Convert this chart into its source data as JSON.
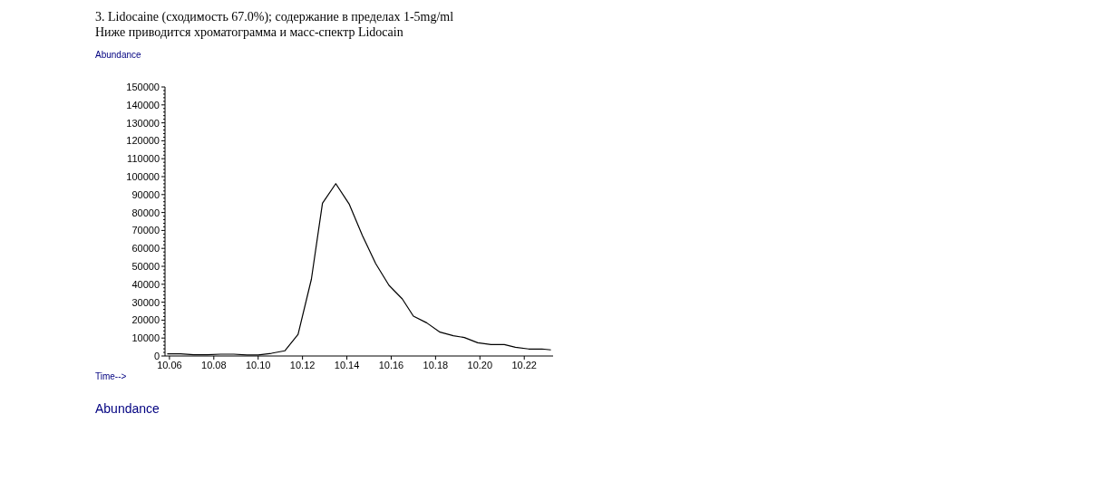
{
  "chart_data": {
    "type": "line",
    "title": "3. Lidocaine (сходимость 67.0%); содержание в пределах 1-5mg/ml",
    "subtitle": "Ниже приводится хроматограмма и масс-спектр Lidocain",
    "ylabel": "Abundance",
    "xlabel": "Time-->",
    "annotations": [
      "Abundance"
    ],
    "x": [
      10.059,
      10.065,
      10.071,
      10.077,
      10.083,
      10.089,
      10.095,
      10.1,
      10.106,
      10.112,
      10.118,
      10.124,
      10.129,
      10.135,
      10.141,
      10.147,
      10.153,
      10.159,
      10.165,
      10.17,
      10.176,
      10.182,
      10.188,
      10.193,
      10.199,
      10.205,
      10.211,
      10.216,
      10.222,
      10.228,
      10.232
    ],
    "values": [
      1200,
      1200,
      700,
      700,
      1000,
      1000,
      600,
      600,
      1500,
      2900,
      12100,
      42800,
      85200,
      96100,
      84800,
      67200,
      51500,
      39400,
      31800,
      22200,
      18500,
      13300,
      11300,
      10300,
      7400,
      6400,
      6400,
      4900,
      3900,
      3900,
      3400
    ],
    "color": "#000000",
    "xlim": [
      10.058,
      10.233
    ],
    "xticks": [
      10.06,
      10.08,
      {
        "value": 10.1,
        "label": "10.10"
      },
      10.12,
      10.14,
      10.16,
      10.18,
      {
        "value": 10.2,
        "label": "10.20"
      },
      10.22
    ],
    "ylim": [
      0,
      150000
    ],
    "yticks": [
      0,
      {
        "value": 2000,
        "label": null
      },
      {
        "value": 4000,
        "label": null
      },
      {
        "value": 6000,
        "label": null
      },
      {
        "value": 8000,
        "label": null
      },
      10000,
      {
        "value": 12000,
        "label": null
      },
      {
        "value": 14000,
        "label": null
      },
      {
        "value": 16000,
        "label": null
      },
      {
        "value": 18000,
        "label": null
      },
      20000,
      {
        "value": 22000,
        "label": null
      },
      {
        "value": 24000,
        "label": null
      },
      {
        "value": 26000,
        "label": null
      },
      {
        "value": 28000,
        "label": null
      },
      30000,
      {
        "value": 32000,
        "label": null
      },
      {
        "value": 34000,
        "label": null
      },
      {
        "value": 36000,
        "label": null
      },
      {
        "value": 38000,
        "label": null
      },
      40000,
      {
        "value": 42000,
        "label": null
      },
      {
        "value": 44000,
        "label": null
      },
      {
        "value": 46000,
        "label": null
      },
      {
        "value": 48000,
        "label": null
      },
      50000,
      {
        "value": 52000,
        "label": null
      },
      {
        "value": 54000,
        "label": null
      },
      {
        "value": 56000,
        "label": null
      },
      {
        "value": 58000,
        "label": null
      },
      60000,
      {
        "value": 62000,
        "label": null
      },
      {
        "value": 64000,
        "label": null
      },
      {
        "value": 66000,
        "label": null
      },
      {
        "value": 68000,
        "label": null
      },
      70000,
      {
        "value": 72000,
        "label": null
      },
      {
        "value": 74000,
        "label": null
      },
      {
        "value": 76000,
        "label": null
      },
      {
        "value": 78000,
        "label": null
      },
      80000,
      {
        "value": 82000,
        "label": null
      },
      {
        "value": 84000,
        "label": null
      },
      {
        "value": 86000,
        "label": null
      },
      {
        "value": 88000,
        "label": null
      },
      90000,
      {
        "value": 92000,
        "label": null
      },
      {
        "value": 94000,
        "label": null
      },
      {
        "value": 96000,
        "label": null
      },
      {
        "value": 98000,
        "label": null
      },
      100000,
      {
        "value": 102000,
        "label": null
      },
      {
        "value": 104000,
        "label": null
      },
      {
        "value": 106000,
        "label": null
      },
      {
        "value": 108000,
        "label": null
      },
      110000,
      {
        "value": 112000,
        "label": null
      },
      {
        "value": 114000,
        "label": null
      },
      {
        "value": 116000,
        "label": null
      },
      {
        "value": 118000,
        "label": null
      },
      120000,
      {
        "value": 122000,
        "label": null
      },
      {
        "value": 124000,
        "label": null
      },
      {
        "value": 126000,
        "label": null
      },
      {
        "value": 128000,
        "label": null
      },
      130000,
      {
        "value": 132000,
        "label": null
      },
      {
        "value": 134000,
        "label": null
      },
      {
        "value": 136000,
        "label": null
      },
      {
        "value": 138000,
        "label": null
      },
      140000,
      {
        "value": 142000,
        "label": null
      },
      {
        "value": 144000,
        "label": null
      },
      {
        "value": 146000,
        "label": null
      },
      {
        "value": 148000,
        "label": null
      },
      150000
    ]
  }
}
